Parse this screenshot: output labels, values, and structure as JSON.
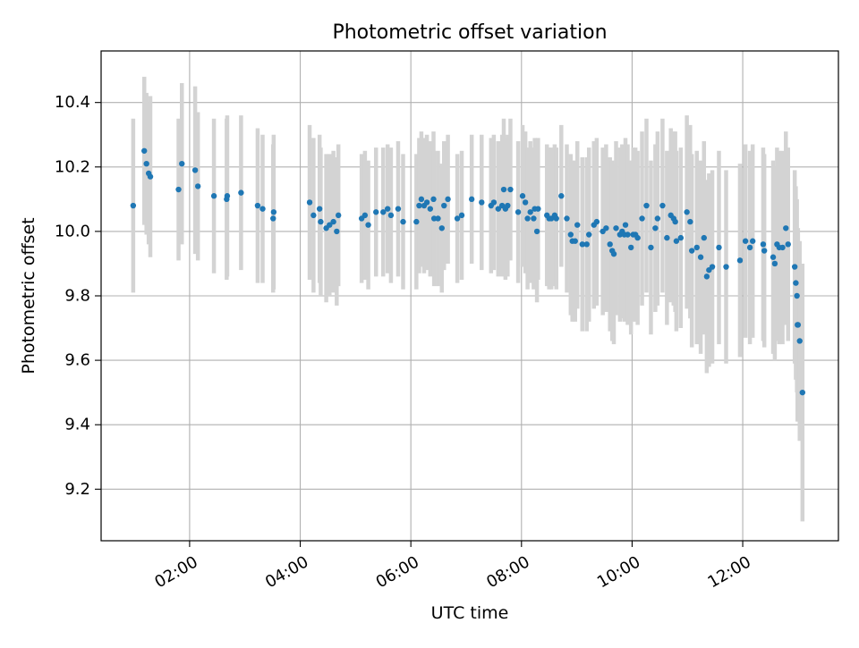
{
  "chart_data": {
    "type": "scatter",
    "title": "Photometric offset variation",
    "xlabel": "UTC time",
    "ylabel": "Photometric offset",
    "x_unit": "hours (UTC)",
    "xlim": [
      0.4,
      13.73
    ],
    "ylim": [
      9.04,
      10.56
    ],
    "xticks": [
      {
        "value": 2,
        "label": "02:00"
      },
      {
        "value": 4,
        "label": "04:00"
      },
      {
        "value": 6,
        "label": "06:00"
      },
      {
        "value": 8,
        "label": "08:00"
      },
      {
        "value": 10,
        "label": "10:00"
      },
      {
        "value": 12,
        "label": "12:00"
      }
    ],
    "yticks": [
      {
        "value": 9.2,
        "label": "9.2"
      },
      {
        "value": 9.4,
        "label": "9.4"
      },
      {
        "value": 9.6,
        "label": "9.6"
      },
      {
        "value": 9.8,
        "label": "9.8"
      },
      {
        "value": 10.0,
        "label": "10.0"
      },
      {
        "value": 10.2,
        "label": "10.2"
      },
      {
        "value": 10.4,
        "label": "10.4"
      }
    ],
    "grid": true,
    "x_tick_rotation": "30deg",
    "marker_color": "#1f77b4",
    "errorbar_color": "#d3d3d3",
    "series": [
      {
        "points": [
          [
            0.98,
            10.08,
            0.27
          ],
          [
            1.18,
            10.25,
            0.23
          ],
          [
            1.22,
            10.21,
            0.22
          ],
          [
            1.26,
            10.18,
            0.22
          ],
          [
            1.29,
            10.17,
            0.25
          ],
          [
            1.8,
            10.13,
            0.22
          ],
          [
            1.86,
            10.21,
            0.25
          ],
          [
            2.1,
            10.19,
            0.26
          ],
          [
            2.15,
            10.14,
            0.23
          ],
          [
            2.44,
            10.11,
            0.24
          ],
          [
            2.67,
            10.1,
            0.25
          ],
          [
            2.68,
            10.11,
            0.25
          ],
          [
            2.93,
            10.12,
            0.24
          ],
          [
            3.23,
            10.08,
            0.24
          ],
          [
            3.32,
            10.07,
            0.23
          ],
          [
            3.51,
            10.04,
            0.23
          ],
          [
            3.52,
            10.06,
            0.24
          ],
          [
            4.17,
            10.09,
            0.24
          ],
          [
            4.24,
            10.05,
            0.24
          ],
          [
            4.35,
            10.07,
            0.23
          ],
          [
            4.37,
            10.03,
            0.23
          ],
          [
            4.47,
            10.01,
            0.23
          ],
          [
            4.53,
            10.02,
            0.22
          ],
          [
            4.6,
            10.03,
            0.22
          ],
          [
            4.66,
            10.0,
            0.23
          ],
          [
            4.69,
            10.05,
            0.22
          ],
          [
            5.11,
            10.04,
            0.2
          ],
          [
            5.17,
            10.05,
            0.2
          ],
          [
            5.23,
            10.02,
            0.2
          ],
          [
            5.37,
            10.06,
            0.2
          ],
          [
            5.5,
            10.06,
            0.2
          ],
          [
            5.58,
            10.07,
            0.2
          ],
          [
            5.64,
            10.05,
            0.21
          ],
          [
            5.77,
            10.07,
            0.21
          ],
          [
            5.86,
            10.03,
            0.21
          ],
          [
            6.1,
            10.03,
            0.21
          ],
          [
            6.15,
            10.08,
            0.21
          ],
          [
            6.19,
            10.1,
            0.21
          ],
          [
            6.24,
            10.08,
            0.21
          ],
          [
            6.29,
            10.09,
            0.21
          ],
          [
            6.35,
            10.07,
            0.21
          ],
          [
            6.41,
            10.1,
            0.21
          ],
          [
            6.42,
            10.04,
            0.21
          ],
          [
            6.49,
            10.04,
            0.21
          ],
          [
            6.56,
            10.01,
            0.2
          ],
          [
            6.6,
            10.08,
            0.2
          ],
          [
            6.67,
            10.1,
            0.2
          ],
          [
            6.84,
            10.04,
            0.2
          ],
          [
            6.92,
            10.05,
            0.2
          ],
          [
            7.1,
            10.1,
            0.2
          ],
          [
            7.28,
            10.09,
            0.21
          ],
          [
            7.45,
            10.08,
            0.21
          ],
          [
            7.5,
            10.09,
            0.21
          ],
          [
            7.58,
            10.07,
            0.21
          ],
          [
            7.65,
            10.08,
            0.22
          ],
          [
            7.68,
            10.13,
            0.22
          ],
          [
            7.71,
            10.07,
            0.22
          ],
          [
            7.75,
            10.08,
            0.22
          ],
          [
            7.8,
            10.13,
            0.22
          ],
          [
            7.94,
            10.06,
            0.22
          ],
          [
            8.02,
            10.11,
            0.22
          ],
          [
            8.07,
            10.09,
            0.22
          ],
          [
            8.11,
            10.04,
            0.22
          ],
          [
            8.16,
            10.06,
            0.22
          ],
          [
            8.22,
            10.04,
            0.22
          ],
          [
            8.24,
            10.07,
            0.22
          ],
          [
            8.28,
            10.0,
            0.22
          ],
          [
            8.3,
            10.07,
            0.22
          ],
          [
            8.46,
            10.05,
            0.22
          ],
          [
            8.5,
            10.04,
            0.22
          ],
          [
            8.54,
            10.04,
            0.22
          ],
          [
            8.6,
            10.05,
            0.22
          ],
          [
            8.63,
            10.04,
            0.22
          ],
          [
            8.72,
            10.11,
            0.22
          ],
          [
            8.82,
            10.04,
            0.23
          ],
          [
            8.89,
            9.99,
            0.25
          ],
          [
            8.92,
            9.97,
            0.25
          ],
          [
            8.97,
            9.97,
            0.25
          ],
          [
            9.01,
            10.02,
            0.26
          ],
          [
            9.1,
            9.96,
            0.27
          ],
          [
            9.18,
            9.96,
            0.27
          ],
          [
            9.22,
            9.99,
            0.27
          ],
          [
            9.31,
            10.02,
            0.26
          ],
          [
            9.36,
            10.03,
            0.26
          ],
          [
            9.47,
            10.0,
            0.26
          ],
          [
            9.53,
            10.01,
            0.26
          ],
          [
            9.6,
            9.96,
            0.27
          ],
          [
            9.64,
            9.94,
            0.28
          ],
          [
            9.67,
            9.93,
            0.28
          ],
          [
            9.71,
            10.01,
            0.27
          ],
          [
            9.78,
            9.99,
            0.27
          ],
          [
            9.82,
            10.0,
            0.27
          ],
          [
            9.86,
            9.99,
            0.27
          ],
          [
            9.88,
            10.02,
            0.27
          ],
          [
            9.92,
            9.99,
            0.28
          ],
          [
            9.98,
            9.95,
            0.27
          ],
          [
            10.02,
            9.99,
            0.27
          ],
          [
            10.06,
            9.99,
            0.27
          ],
          [
            10.1,
            9.98,
            0.27
          ],
          [
            10.18,
            10.04,
            0.27
          ],
          [
            10.26,
            10.08,
            0.27
          ],
          [
            10.34,
            9.95,
            0.27
          ],
          [
            10.42,
            10.01,
            0.26
          ],
          [
            10.46,
            10.04,
            0.27
          ],
          [
            10.55,
            10.08,
            0.27
          ],
          [
            10.63,
            9.98,
            0.27
          ],
          [
            10.7,
            10.05,
            0.27
          ],
          [
            10.75,
            10.04,
            0.27
          ],
          [
            10.78,
            10.03,
            0.28
          ],
          [
            10.8,
            9.97,
            0.28
          ],
          [
            10.88,
            9.98,
            0.28
          ],
          [
            10.99,
            10.06,
            0.3
          ],
          [
            11.05,
            10.03,
            0.3
          ],
          [
            11.08,
            9.94,
            0.3
          ],
          [
            11.17,
            9.95,
            0.3
          ],
          [
            11.24,
            9.92,
            0.3
          ],
          [
            11.3,
            9.98,
            0.3
          ],
          [
            11.35,
            9.86,
            0.3
          ],
          [
            11.39,
            9.88,
            0.3
          ],
          [
            11.45,
            9.89,
            0.3
          ],
          [
            11.57,
            9.95,
            0.3
          ],
          [
            11.7,
            9.89,
            0.3
          ],
          [
            11.95,
            9.91,
            0.3
          ],
          [
            12.05,
            9.97,
            0.3
          ],
          [
            12.13,
            9.95,
            0.3
          ],
          [
            12.18,
            9.97,
            0.3
          ],
          [
            12.37,
            9.96,
            0.3
          ],
          [
            12.39,
            9.94,
            0.3
          ],
          [
            12.55,
            9.92,
            0.3
          ],
          [
            12.58,
            9.9,
            0.3
          ],
          [
            12.62,
            9.96,
            0.3
          ],
          [
            12.66,
            9.95,
            0.3
          ],
          [
            12.72,
            9.95,
            0.3
          ],
          [
            12.78,
            10.01,
            0.3
          ],
          [
            12.82,
            9.96,
            0.3
          ],
          [
            12.94,
            9.89,
            0.3
          ],
          [
            12.96,
            9.84,
            0.3
          ],
          [
            12.98,
            9.8,
            0.3
          ],
          [
            12.99,
            9.71,
            0.3
          ],
          [
            13.0,
            9.71,
            0.3
          ],
          [
            13.03,
            9.66,
            0.31
          ],
          [
            13.08,
            9.5,
            0.4
          ]
        ]
      }
    ]
  }
}
